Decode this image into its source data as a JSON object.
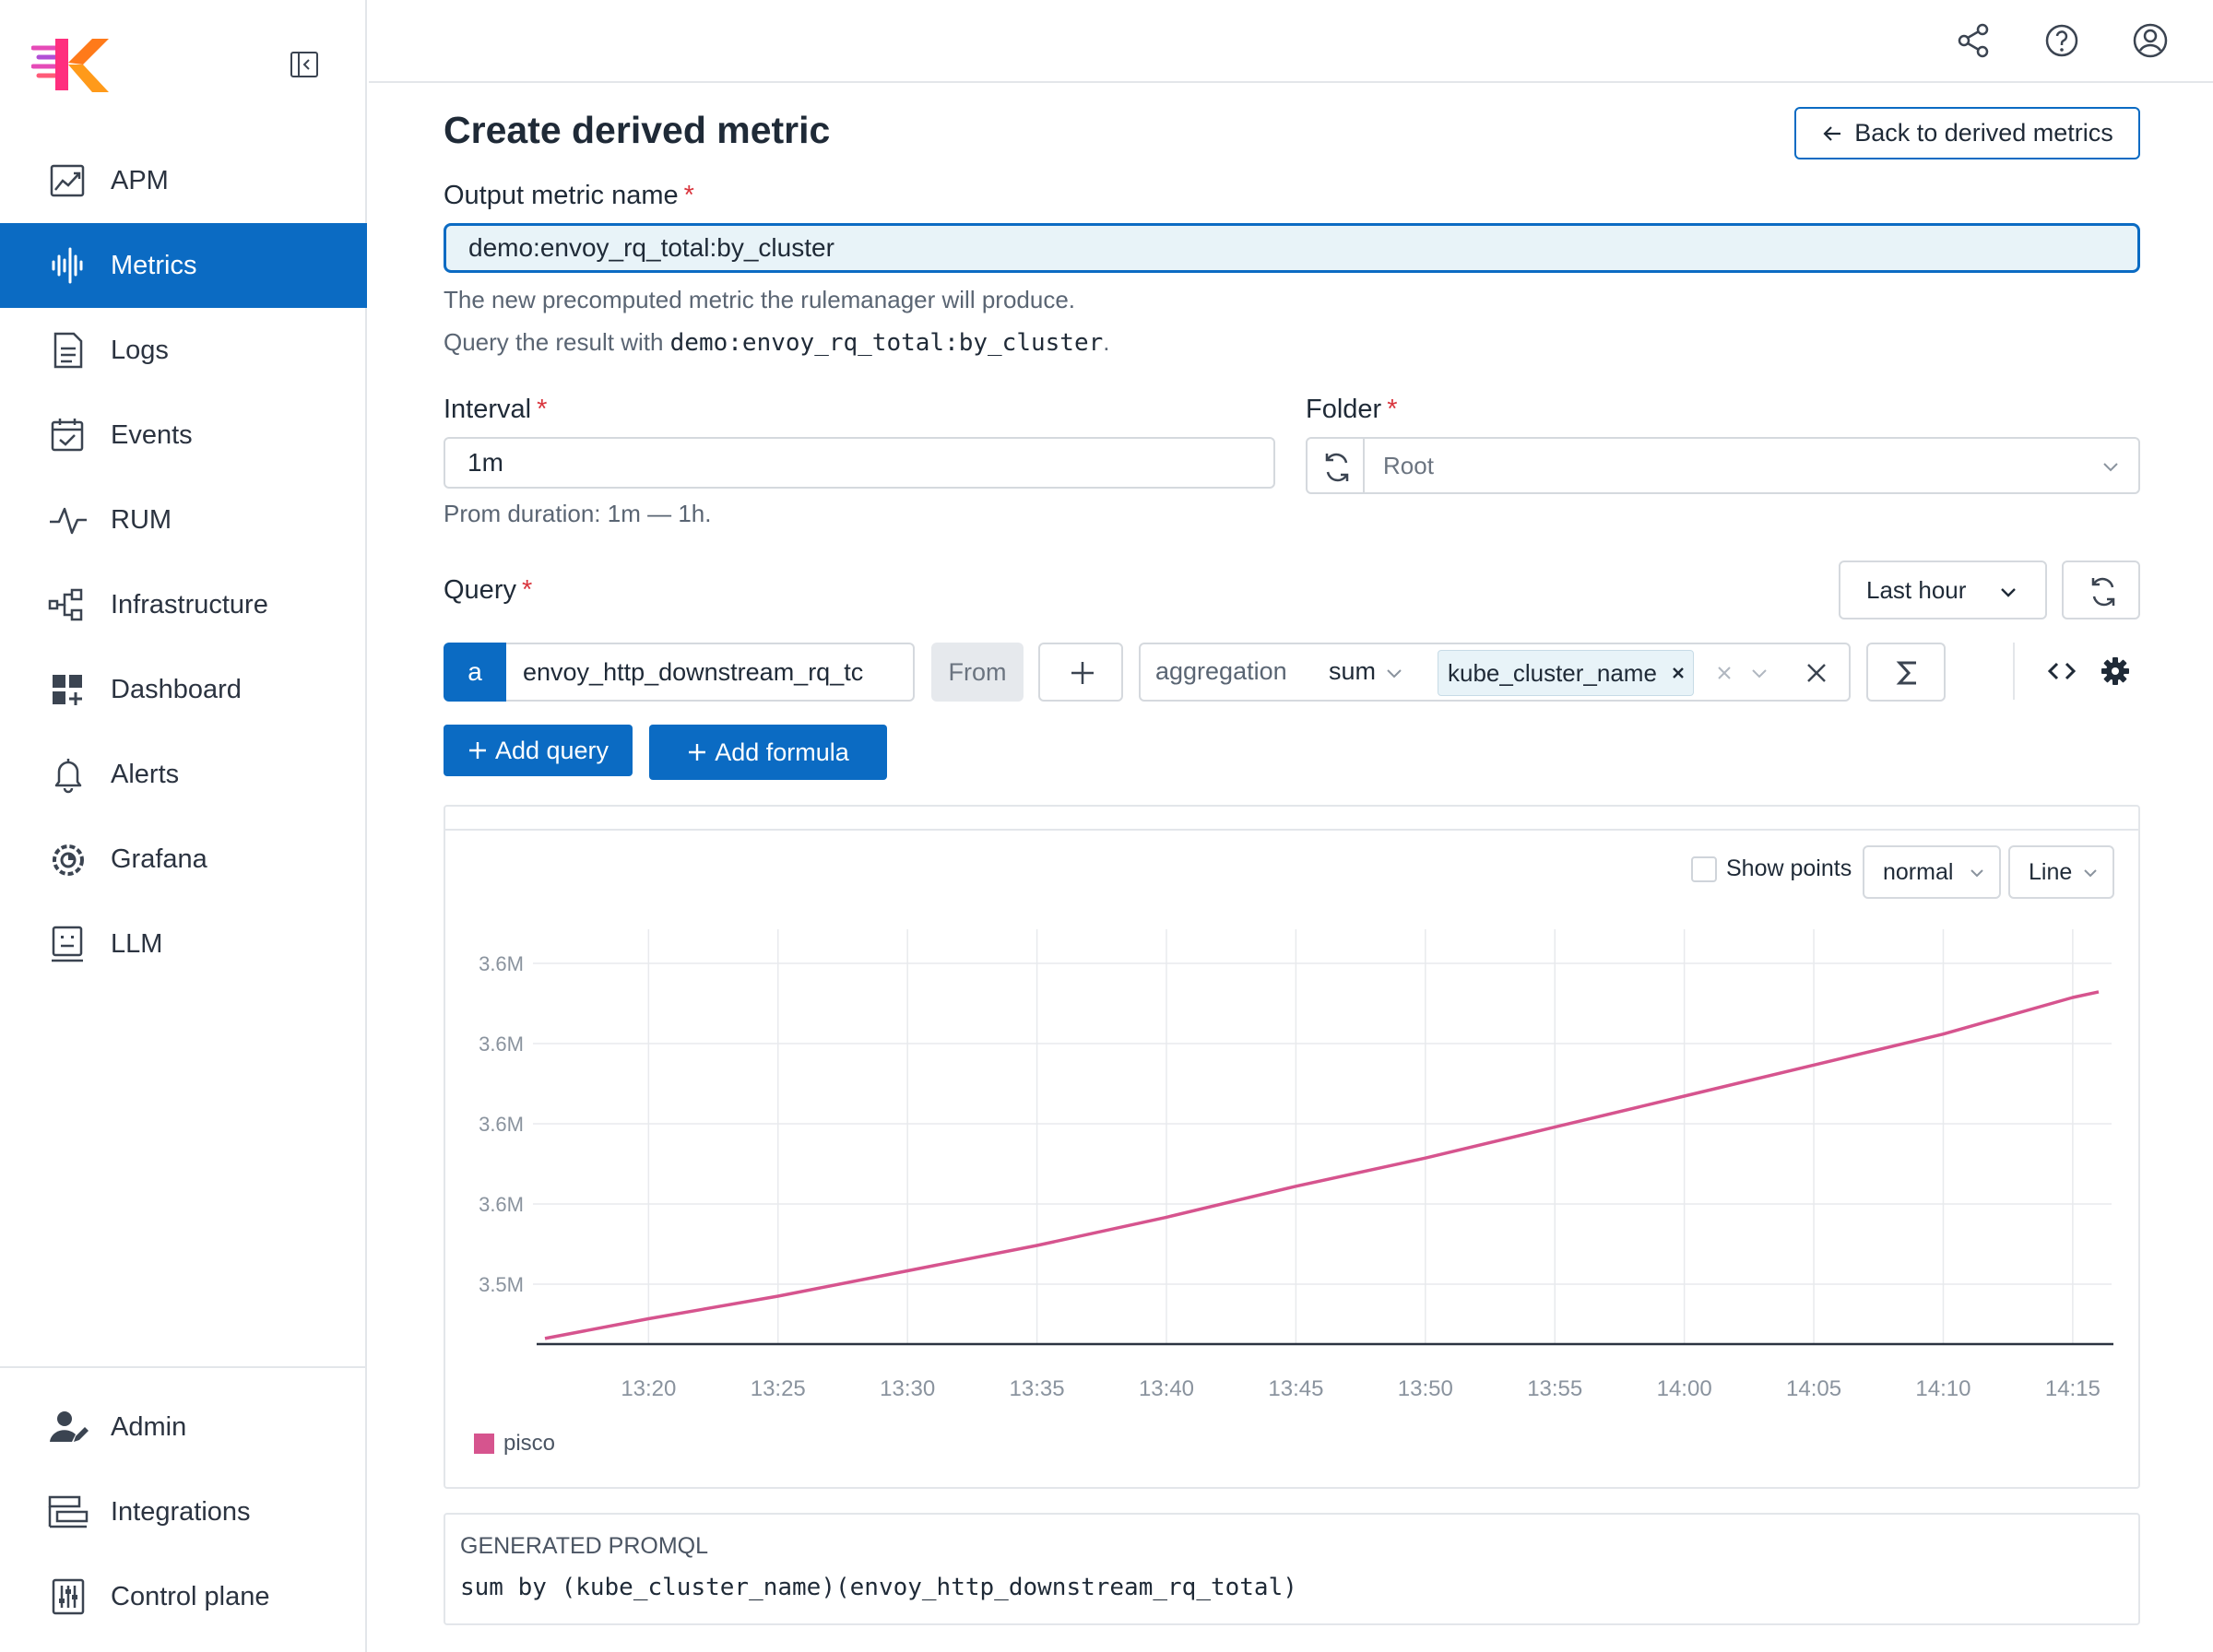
{
  "sidebar": {
    "items": [
      {
        "label": "APM",
        "icon": "apm-chart-icon"
      },
      {
        "label": "Metrics",
        "icon": "metrics-waveform-icon",
        "active": true
      },
      {
        "label": "Logs",
        "icon": "document-icon"
      },
      {
        "label": "Events",
        "icon": "calendar-check-icon"
      },
      {
        "label": "RUM",
        "icon": "pulse-icon"
      },
      {
        "label": "Infrastructure",
        "icon": "hierarchy-icon"
      },
      {
        "label": "Dashboard",
        "icon": "dashboard-grid-icon"
      },
      {
        "label": "Alerts",
        "icon": "bell-icon"
      },
      {
        "label": "Grafana",
        "icon": "grafana-icon"
      },
      {
        "label": "LLM",
        "icon": "robot-screen-icon"
      }
    ],
    "bottom_items": [
      {
        "label": "Admin",
        "icon": "user-edit-icon"
      },
      {
        "label": "Integrations",
        "icon": "integrations-icon"
      },
      {
        "label": "Control plane",
        "icon": "sliders-icon"
      }
    ]
  },
  "topbar": {
    "icons": [
      "share-icon",
      "help-icon",
      "user-icon"
    ]
  },
  "page": {
    "title": "Create derived metric",
    "back_button": "Back to derived metrics"
  },
  "output_metric": {
    "label": "Output metric name",
    "required": "*",
    "value": "demo:envoy_rq_total:by_cluster",
    "help_line1": "The new precomputed metric the rulemanager will produce.",
    "help_line2_prefix": "Query the result with ",
    "help_line2_code": "demo:envoy_rq_total:by_cluster",
    "help_line2_suffix": "."
  },
  "interval": {
    "label": "Interval",
    "required": "*",
    "value": "1m",
    "help": "Prom duration: 1m — 1h."
  },
  "folder": {
    "label": "Folder",
    "required": "*",
    "value": "Root"
  },
  "query": {
    "label": "Query",
    "required": "*",
    "time_range": "Last hour",
    "letter": "a",
    "metric": "envoy_http_downstream_rq_tc",
    "from_label": "From",
    "aggregation_label": "aggregation",
    "aggregation_value": "sum",
    "group_by_tag": "kube_cluster_name",
    "add_query": "Add query",
    "add_formula": "Add formula"
  },
  "chart_controls": {
    "show_points": "Show points",
    "stack_mode": "normal",
    "chart_type": "Line"
  },
  "chart_data": {
    "type": "line",
    "x_tick_labels": [
      "13:20",
      "13:25",
      "13:30",
      "13:35",
      "13:40",
      "13:45",
      "13:50",
      "13:55",
      "14:00",
      "14:05",
      "14:10",
      "14:15"
    ],
    "y_tick_labels": [
      "3.6M",
      "3.6M",
      "3.6M",
      "3.6M",
      "3.5M"
    ],
    "ylim": [
      3.51,
      3.65
    ],
    "grid": true,
    "series": [
      {
        "name": "pisco",
        "color": "#d6548e",
        "x": [
          "13:16",
          "13:20",
          "13:25",
          "13:30",
          "13:35",
          "13:40",
          "13:45",
          "13:50",
          "13:55",
          "14:00",
          "14:05",
          "14:10",
          "14:15",
          "14:16"
        ],
        "y": [
          3.512,
          3.519,
          3.527,
          3.536,
          3.545,
          3.555,
          3.566,
          3.576,
          3.587,
          3.598,
          3.609,
          3.62,
          3.633,
          3.635
        ]
      }
    ],
    "legend": "bottom-left"
  },
  "promql": {
    "title": "GENERATED PROMQL",
    "code": "sum by (kube_cluster_name)(envoy_http_downstream_rq_total)"
  }
}
